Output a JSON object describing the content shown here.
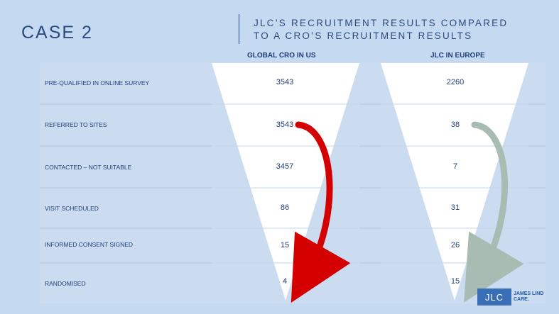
{
  "header": {
    "case_label": "CASE 2",
    "title_line1": "JLC’S RECRUITMENT RESULTS COMPARED",
    "title_line2": "TO A CRO’S RECRUITMENT RESULTS"
  },
  "columns": {
    "left_heading": "GLOBAL CRO IN US",
    "right_heading": "JLC IN EUROPE"
  },
  "rows": [
    {
      "label": "PRE-QUALIFIED IN ONLINE SURVEY",
      "cro": "3543",
      "jlc": "2260"
    },
    {
      "label": "REFERRED TO SITES",
      "cro": "3543",
      "jlc": "38"
    },
    {
      "label": "CONTACTED – NOT SUITABLE",
      "cro": "3457",
      "jlc": "7"
    },
    {
      "label": "VISIT SCHEDULED",
      "cro": "86",
      "jlc": "31"
    },
    {
      "label": "INFORMED CONSENT SIGNED",
      "cro": "15",
      "jlc": "26"
    },
    {
      "label": "RANDOMISED",
      "cro": "4",
      "jlc": "15"
    }
  ],
  "colors": {
    "background": "#c5d9f0",
    "funnel_fill": "#ffffff",
    "text": "#1f3f78",
    "cro_arrow": "#d40000",
    "jlc_arrow": "#a9bcb4"
  },
  "logo": {
    "mark": "JLC",
    "name_line1": "JAMES LIND",
    "name_line2": "CARE."
  }
}
